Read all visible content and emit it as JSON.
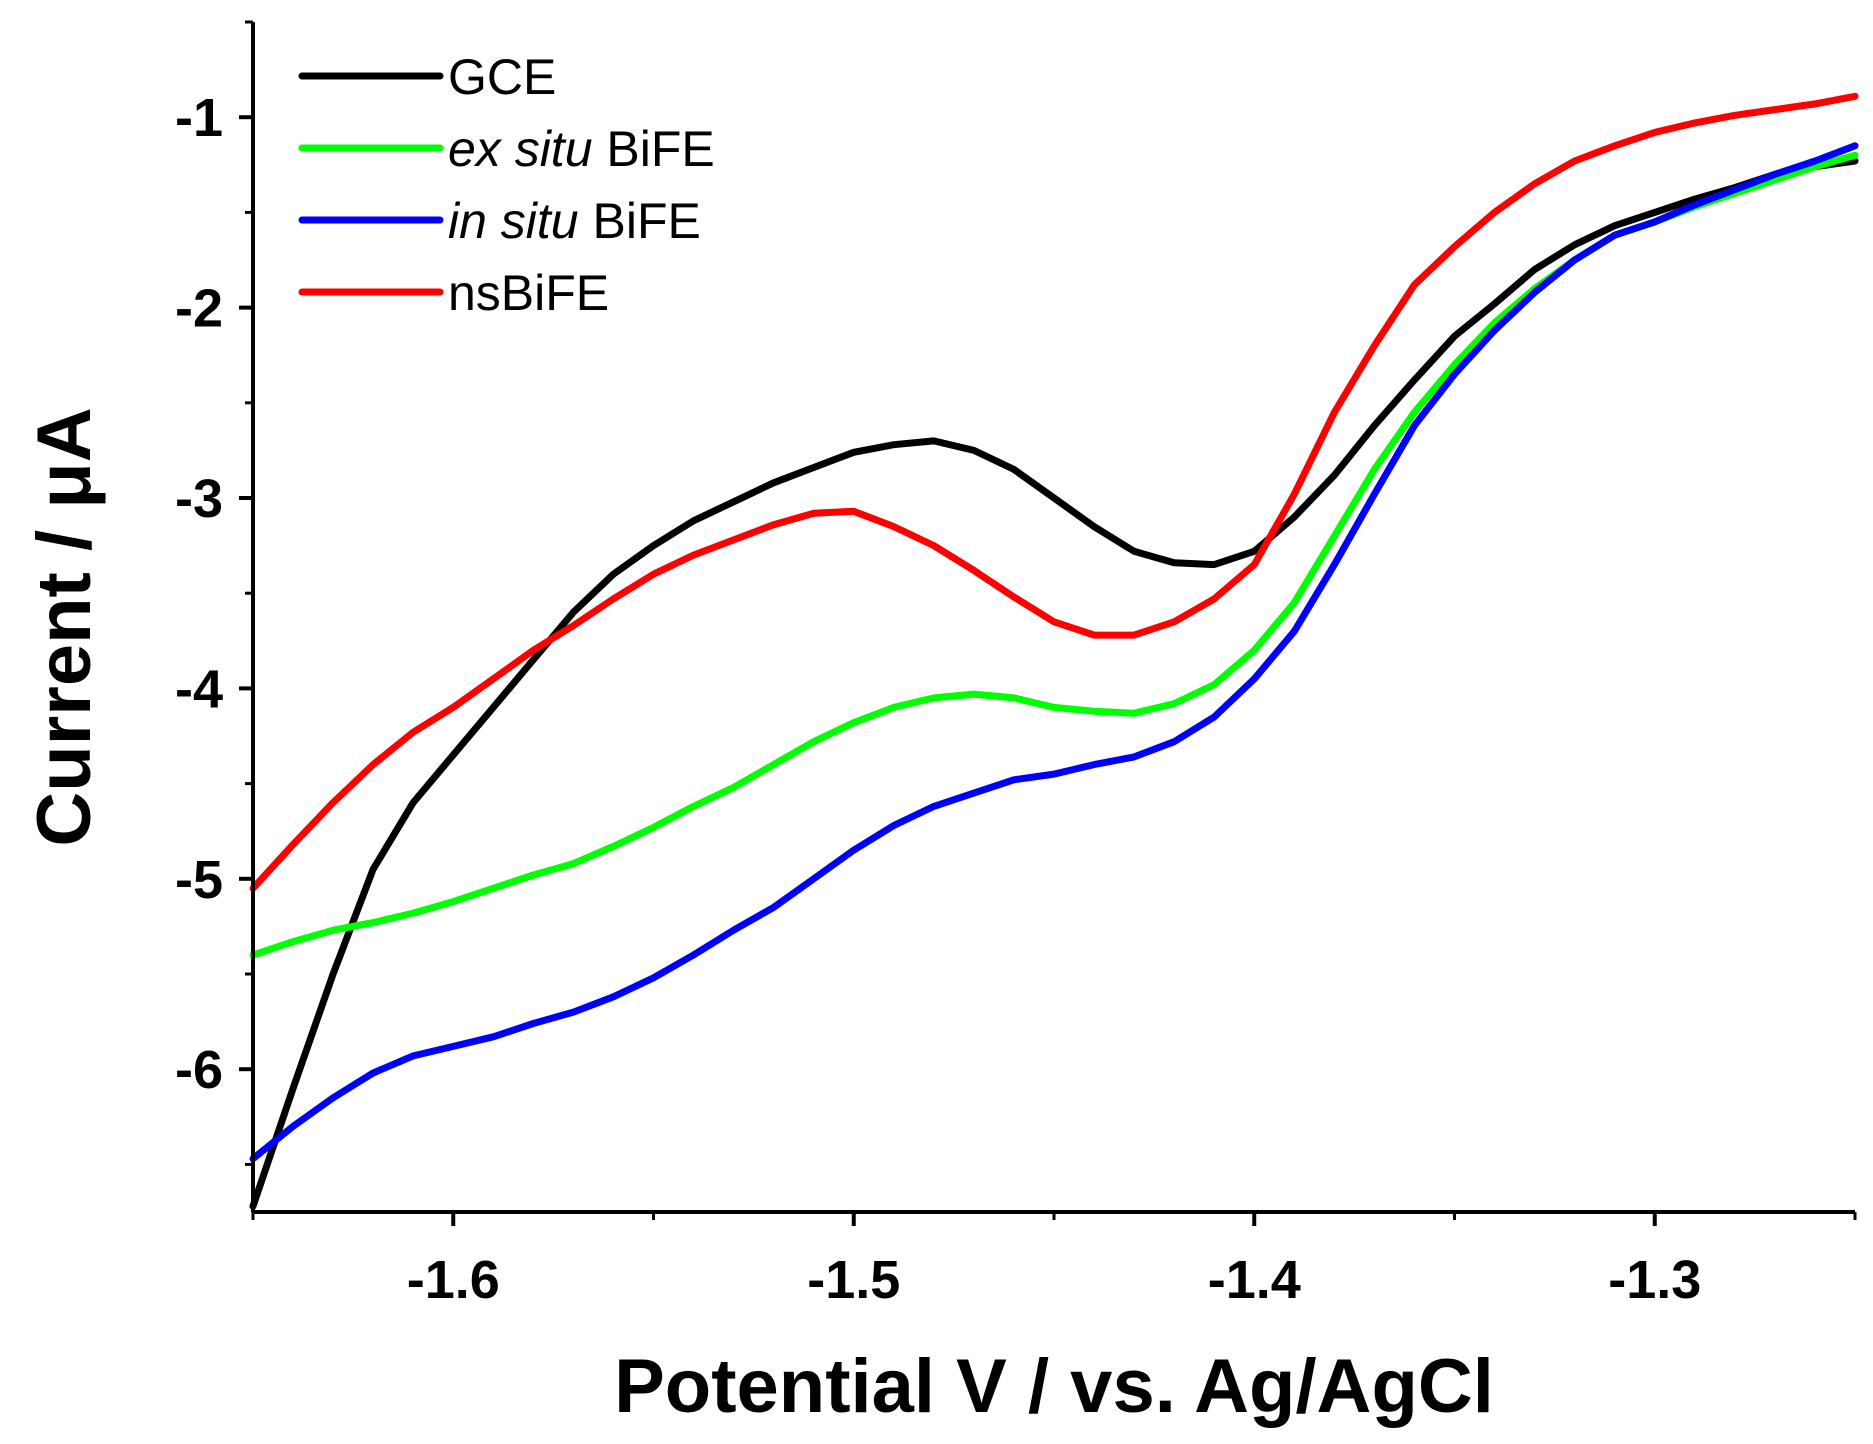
{
  "chart_data": {
    "type": "line",
    "title": "",
    "xlabel": "Potential V / vs. Ag/AgCl",
    "ylabel": "Current / μA",
    "xlim": [
      -1.65,
      -1.25
    ],
    "ylim": [
      -6.75,
      -0.5
    ],
    "xticks": [
      -1.6,
      -1.5,
      -1.4,
      -1.3
    ],
    "xtick_labels": [
      "-1.6",
      "-1.5",
      "-1.4",
      "-1.3"
    ],
    "yticks": [
      -6,
      -5,
      -4,
      -3,
      -2,
      -1
    ],
    "ytick_labels": [
      "-6",
      "-5",
      "-4",
      "-3",
      "-2",
      "-1"
    ],
    "legend_position": "top-left",
    "series": [
      {
        "name": "GCE",
        "label_parts": [
          {
            "text": "GCE",
            "italic": false
          }
        ],
        "color": "#000000",
        "x": [
          -1.65,
          -1.64,
          -1.63,
          -1.62,
          -1.61,
          -1.6,
          -1.59,
          -1.58,
          -1.57,
          -1.56,
          -1.55,
          -1.54,
          -1.53,
          -1.52,
          -1.51,
          -1.5,
          -1.49,
          -1.48,
          -1.47,
          -1.46,
          -1.45,
          -1.44,
          -1.43,
          -1.42,
          -1.41,
          -1.4,
          -1.39,
          -1.38,
          -1.37,
          -1.36,
          -1.35,
          -1.34,
          -1.33,
          -1.32,
          -1.31,
          -1.3,
          -1.29,
          -1.28,
          -1.27,
          -1.26,
          -1.25
        ],
        "y": [
          -6.72,
          -6.1,
          -5.5,
          -4.95,
          -4.6,
          -4.35,
          -4.1,
          -3.85,
          -3.6,
          -3.4,
          -3.25,
          -3.12,
          -3.02,
          -2.92,
          -2.84,
          -2.76,
          -2.72,
          -2.7,
          -2.75,
          -2.85,
          -3.0,
          -3.15,
          -3.28,
          -3.34,
          -3.35,
          -3.28,
          -3.1,
          -2.88,
          -2.62,
          -2.38,
          -2.15,
          -1.98,
          -1.8,
          -1.67,
          -1.57,
          -1.5,
          -1.43,
          -1.37,
          -1.3,
          -1.26,
          -1.23
        ]
      },
      {
        "name": "ex situ BiFE",
        "label_parts": [
          {
            "text": "ex situ",
            "italic": true
          },
          {
            "text": " BiFE",
            "italic": false
          }
        ],
        "color": "#00ff00",
        "x": [
          -1.65,
          -1.64,
          -1.63,
          -1.62,
          -1.61,
          -1.6,
          -1.59,
          -1.58,
          -1.57,
          -1.56,
          -1.55,
          -1.54,
          -1.53,
          -1.52,
          -1.51,
          -1.5,
          -1.49,
          -1.48,
          -1.47,
          -1.46,
          -1.45,
          -1.44,
          -1.43,
          -1.42,
          -1.41,
          -1.4,
          -1.39,
          -1.38,
          -1.37,
          -1.36,
          -1.35,
          -1.34,
          -1.33,
          -1.32,
          -1.31,
          -1.3,
          -1.29,
          -1.28,
          -1.27,
          -1.26,
          -1.25
        ],
        "y": [
          -5.4,
          -5.33,
          -5.27,
          -5.23,
          -5.18,
          -5.12,
          -5.05,
          -4.98,
          -4.92,
          -4.83,
          -4.73,
          -4.62,
          -4.52,
          -4.4,
          -4.28,
          -4.18,
          -4.1,
          -4.05,
          -4.03,
          -4.05,
          -4.1,
          -4.12,
          -4.13,
          -4.08,
          -3.98,
          -3.8,
          -3.55,
          -3.2,
          -2.85,
          -2.55,
          -2.3,
          -2.08,
          -1.9,
          -1.75,
          -1.62,
          -1.55,
          -1.47,
          -1.4,
          -1.33,
          -1.26,
          -1.2
        ]
      },
      {
        "name": "in situ BiFE",
        "label_parts": [
          {
            "text": "in situ",
            "italic": true
          },
          {
            "text": " BiFE",
            "italic": false
          }
        ],
        "color": "#0000ff",
        "x": [
          -1.65,
          -1.64,
          -1.63,
          -1.62,
          -1.61,
          -1.6,
          -1.59,
          -1.58,
          -1.57,
          -1.56,
          -1.55,
          -1.54,
          -1.53,
          -1.52,
          -1.51,
          -1.5,
          -1.49,
          -1.48,
          -1.47,
          -1.46,
          -1.45,
          -1.44,
          -1.43,
          -1.42,
          -1.41,
          -1.4,
          -1.39,
          -1.38,
          -1.37,
          -1.36,
          -1.35,
          -1.34,
          -1.33,
          -1.32,
          -1.31,
          -1.3,
          -1.29,
          -1.28,
          -1.27,
          -1.26,
          -1.25
        ],
        "y": [
          -6.47,
          -6.3,
          -6.15,
          -6.02,
          -5.93,
          -5.88,
          -5.83,
          -5.76,
          -5.7,
          -5.62,
          -5.52,
          -5.4,
          -5.27,
          -5.15,
          -5.0,
          -4.85,
          -4.72,
          -4.62,
          -4.55,
          -4.48,
          -4.45,
          -4.4,
          -4.36,
          -4.28,
          -4.15,
          -3.95,
          -3.7,
          -3.35,
          -2.98,
          -2.62,
          -2.35,
          -2.12,
          -1.92,
          -1.75,
          -1.62,
          -1.55,
          -1.46,
          -1.38,
          -1.3,
          -1.23,
          -1.15
        ]
      },
      {
        "name": "nsBiFE",
        "label_parts": [
          {
            "text": "nsBiFE",
            "italic": false
          }
        ],
        "color": "#ff0000",
        "x": [
          -1.65,
          -1.64,
          -1.63,
          -1.62,
          -1.61,
          -1.6,
          -1.59,
          -1.58,
          -1.57,
          -1.56,
          -1.55,
          -1.54,
          -1.53,
          -1.52,
          -1.51,
          -1.5,
          -1.49,
          -1.48,
          -1.47,
          -1.46,
          -1.45,
          -1.44,
          -1.43,
          -1.42,
          -1.41,
          -1.4,
          -1.39,
          -1.38,
          -1.37,
          -1.36,
          -1.35,
          -1.34,
          -1.33,
          -1.32,
          -1.31,
          -1.3,
          -1.29,
          -1.28,
          -1.27,
          -1.26,
          -1.25
        ],
        "y": [
          -5.05,
          -4.82,
          -4.6,
          -4.4,
          -4.23,
          -4.1,
          -3.95,
          -3.8,
          -3.67,
          -3.53,
          -3.4,
          -3.3,
          -3.22,
          -3.14,
          -3.08,
          -3.07,
          -3.15,
          -3.25,
          -3.38,
          -3.52,
          -3.65,
          -3.72,
          -3.72,
          -3.65,
          -3.53,
          -3.35,
          -2.98,
          -2.55,
          -2.2,
          -1.88,
          -1.68,
          -1.5,
          -1.35,
          -1.23,
          -1.15,
          -1.08,
          -1.03,
          -0.99,
          -0.96,
          -0.93,
          -0.89
        ]
      }
    ]
  }
}
